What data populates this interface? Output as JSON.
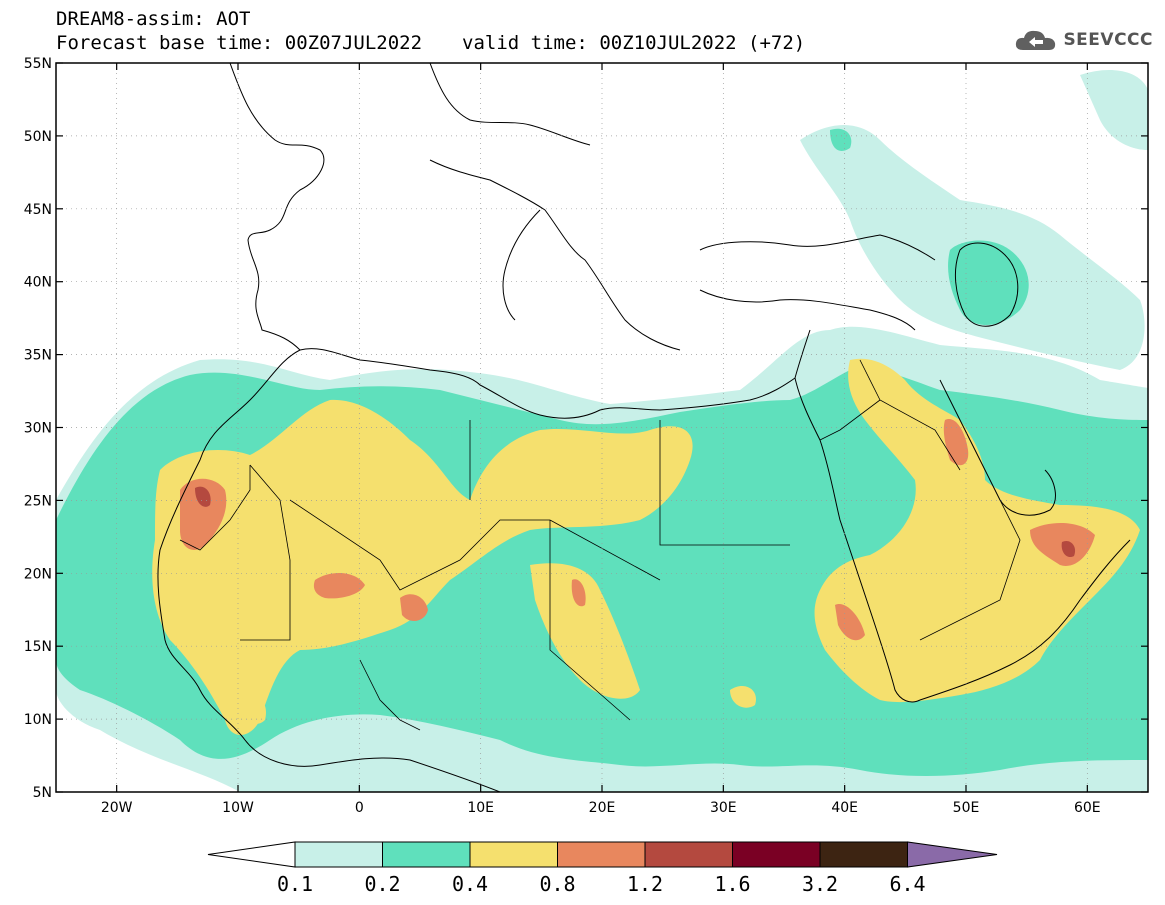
{
  "header": {
    "line1": "DREAM8-assim: AOT",
    "base_time": "Forecast base time: 00Z07JUL2022",
    "valid_time": "valid time: 00Z10JUL2022 (+72)"
  },
  "logo": {
    "text": "SEEVCCC",
    "icon": "cloud-icon"
  },
  "map": {
    "lon_range": [
      -25,
      65
    ],
    "lat_range": [
      5,
      55
    ],
    "lat_ticks": [
      {
        "value": 55,
        "label": "55N"
      },
      {
        "value": 50,
        "label": "50N"
      },
      {
        "value": 45,
        "label": "45N"
      },
      {
        "value": 40,
        "label": "40N"
      },
      {
        "value": 35,
        "label": "35N"
      },
      {
        "value": 30,
        "label": "30N"
      },
      {
        "value": 25,
        "label": "25N"
      },
      {
        "value": 20,
        "label": "20N"
      },
      {
        "value": 15,
        "label": "15N"
      },
      {
        "value": 10,
        "label": "10N"
      },
      {
        "value": 5,
        "label": "5N"
      }
    ],
    "lon_ticks": [
      {
        "value": -20,
        "label": "20W"
      },
      {
        "value": -10,
        "label": "10W"
      },
      {
        "value": 0,
        "label": "0"
      },
      {
        "value": 10,
        "label": "10E"
      },
      {
        "value": 20,
        "label": "20E"
      },
      {
        "value": 30,
        "label": "30E"
      },
      {
        "value": 40,
        "label": "40E"
      },
      {
        "value": 50,
        "label": "50E"
      },
      {
        "value": 60,
        "label": "60E"
      }
    ]
  },
  "colorbar": {
    "labels": [
      "0.1",
      "0.2",
      "0.4",
      "0.8",
      "1.2",
      "1.6",
      "3.2",
      "6.4"
    ],
    "colors": [
      "#ffffff",
      "#c8f0e8",
      "#5fe0bc",
      "#f5e06e",
      "#e8875e",
      "#b4493f",
      "#7a0024",
      "#3d2412",
      "#8a6aa8"
    ]
  },
  "colors": {
    "level1": "#c8f0e8",
    "level2": "#5fe0bc",
    "level3": "#f5e06e",
    "level4": "#e8875e",
    "level5": "#b4493f"
  }
}
